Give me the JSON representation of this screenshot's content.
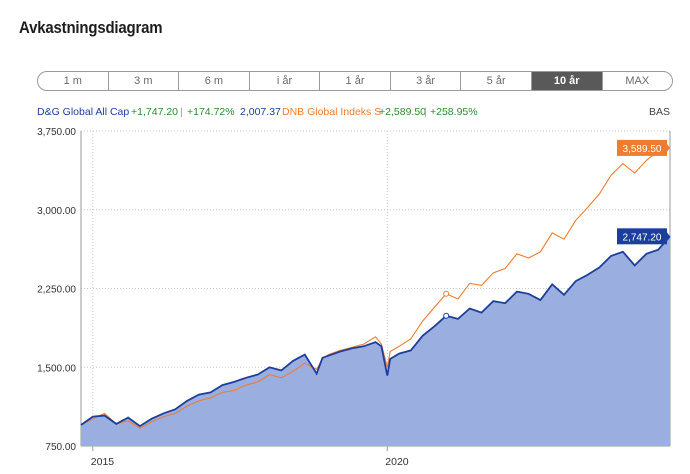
{
  "title": "Avkastningsdiagram",
  "ranges": [
    "1 m",
    "3 m",
    "6 m",
    "i år",
    "1 år",
    "3 år",
    "5 år",
    "10 år",
    "MAX"
  ],
  "active_range": "10 år",
  "legend": {
    "fund1_name": "D&G Global All Cap",
    "fund1_change": "+1,747.20",
    "sep1": "|",
    "fund1_pct": "+174.72%",
    "fund1_value": "2,007.37",
    "fund2_name": "DNB Global Indeks S",
    "fund2_change": "+2,589.50",
    "sep2": "|",
    "fund2_pct": "+258.95%",
    "base_label": "BAS"
  },
  "colors": {
    "fund1": "#1c3f9c",
    "fund1_fill": "#9aaee0",
    "fund2": "#ed7d31",
    "positive": "#2f8a2f"
  },
  "chart_data": {
    "type": "area",
    "x_ticks": [
      "2015",
      "2020"
    ],
    "y_ticks": [
      "750.00",
      "1,500.00",
      "2,250.00",
      "3,000.00",
      "3,750.00"
    ],
    "ylim": [
      750,
      3750
    ],
    "xlim": [
      2014.8,
      2024.8
    ],
    "grid": true,
    "end_labels": [
      "3,589.50",
      "2,747.20"
    ],
    "series": [
      {
        "name": "D&G Global All Cap",
        "x": [
          2014.8,
          2015.0,
          2015.2,
          2015.4,
          2015.6,
          2015.8,
          2016.0,
          2016.2,
          2016.4,
          2016.6,
          2016.8,
          2017.0,
          2017.2,
          2017.4,
          2017.6,
          2017.8,
          2018.0,
          2018.2,
          2018.4,
          2018.6,
          2018.8,
          2018.9,
          2019.0,
          2019.2,
          2019.4,
          2019.6,
          2019.8,
          2019.9,
          2020.0,
          2020.05,
          2020.2,
          2020.4,
          2020.6,
          2020.8,
          2021.0,
          2021.2,
          2021.4,
          2021.6,
          2021.8,
          2022.0,
          2022.2,
          2022.4,
          2022.6,
          2022.8,
          2023.0,
          2023.2,
          2023.4,
          2023.6,
          2023.8,
          2024.0,
          2024.2,
          2024.4,
          2024.6,
          2024.8
        ],
        "values": [
          950,
          1030,
          1040,
          960,
          1020,
          940,
          1010,
          1060,
          1100,
          1180,
          1240,
          1260,
          1330,
          1360,
          1400,
          1430,
          1500,
          1470,
          1560,
          1620,
          1440,
          1590,
          1610,
          1650,
          1680,
          1700,
          1740,
          1700,
          1420,
          1580,
          1630,
          1660,
          1800,
          1890,
          1990,
          1960,
          2060,
          2020,
          2130,
          2110,
          2220,
          2200,
          2140,
          2290,
          2190,
          2320,
          2380,
          2450,
          2560,
          2600,
          2470,
          2580,
          2620,
          2747
        ]
      },
      {
        "name": "DNB Global Indeks S",
        "x": [
          2014.8,
          2015.0,
          2015.2,
          2015.4,
          2015.6,
          2015.8,
          2016.0,
          2016.2,
          2016.4,
          2016.6,
          2016.8,
          2017.0,
          2017.2,
          2017.4,
          2017.6,
          2017.8,
          2018.0,
          2018.2,
          2018.4,
          2018.6,
          2018.8,
          2018.9,
          2019.0,
          2019.2,
          2019.4,
          2019.6,
          2019.8,
          2019.9,
          2020.0,
          2020.05,
          2020.2,
          2020.4,
          2020.6,
          2020.8,
          2021.0,
          2021.2,
          2021.4,
          2021.6,
          2021.8,
          2022.0,
          2022.2,
          2022.4,
          2022.6,
          2022.8,
          2023.0,
          2023.2,
          2023.4,
          2023.6,
          2023.8,
          2024.0,
          2024.2,
          2024.4,
          2024.6,
          2024.8
        ],
        "values": [
          950,
          1010,
          1060,
          960,
          990,
          920,
          980,
          1030,
          1060,
          1130,
          1180,
          1210,
          1260,
          1280,
          1330,
          1360,
          1430,
          1400,
          1460,
          1540,
          1480,
          1580,
          1620,
          1660,
          1690,
          1720,
          1790,
          1720,
          1500,
          1650,
          1700,
          1770,
          1940,
          2070,
          2200,
          2150,
          2300,
          2280,
          2400,
          2440,
          2580,
          2540,
          2600,
          2780,
          2720,
          2900,
          3020,
          3150,
          3330,
          3440,
          3350,
          3470,
          3560,
          3589
        ]
      }
    ]
  }
}
